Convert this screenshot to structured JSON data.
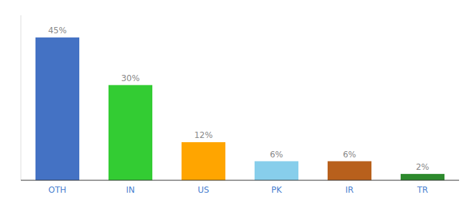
{
  "chart_data": {
    "type": "bar",
    "categories": [
      "OTH",
      "IN",
      "US",
      "PK",
      "IR",
      "TR"
    ],
    "values": [
      45,
      30,
      12,
      6,
      6,
      2
    ],
    "value_labels": [
      "45%",
      "30%",
      "12%",
      "6%",
      "6%",
      "2%"
    ],
    "colors": [
      "#4472C4",
      "#33CC33",
      "#FFA500",
      "#87CEEB",
      "#B8601C",
      "#2D8A2D"
    ],
    "ylim": [
      0,
      52
    ],
    "data_labels": true,
    "grid": false,
    "tick_labels": "x"
  }
}
